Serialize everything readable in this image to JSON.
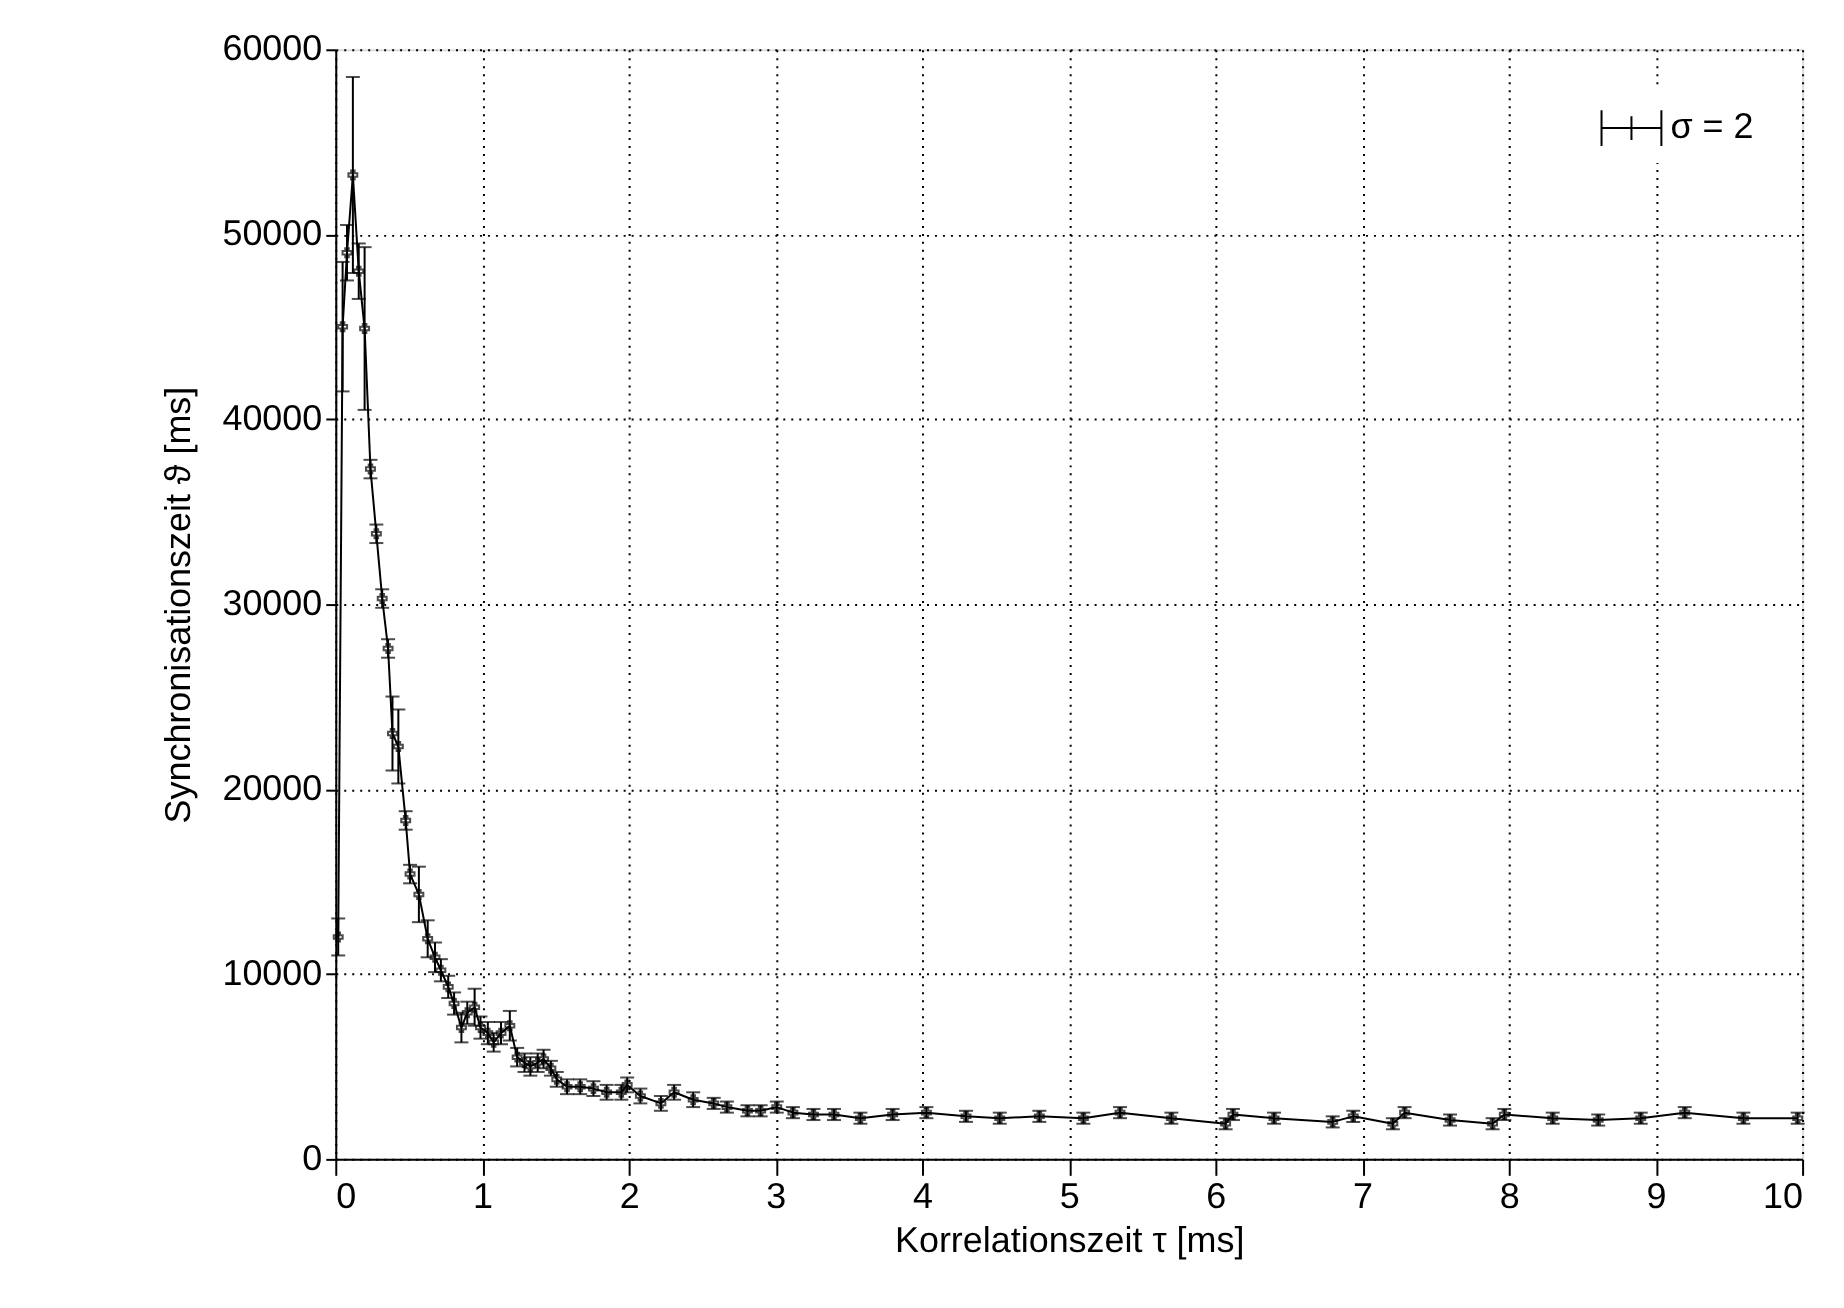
{
  "chart_data": {
    "type": "line",
    "xlabel": "Korrelationszeit τ [ms]",
    "ylabel": "Synchronisationszeit ϑ [ms]",
    "xlim": [
      0,
      10
    ],
    "ylim": [
      0,
      60000
    ],
    "xticks": [
      0,
      1,
      2,
      3,
      4,
      5,
      6,
      7,
      8,
      9,
      10
    ],
    "yticks": [
      0,
      10000,
      20000,
      30000,
      40000,
      50000,
      60000
    ],
    "grid": true,
    "legend": "top right",
    "marker": "cross",
    "line_style": "solid",
    "x": [
      0.02,
      0.05,
      0.08,
      0.12,
      0.16,
      0.2,
      0.24,
      0.28,
      0.32,
      0.36,
      0.39,
      0.43,
      0.48,
      0.51,
      0.57,
      0.63,
      0.68,
      0.72,
      0.77,
      0.81,
      0.86,
      0.9,
      0.95,
      0.99,
      1.04,
      1.08,
      1.13,
      1.19,
      1.24,
      1.29,
      1.33,
      1.38,
      1.42,
      1.47,
      1.51,
      1.58,
      1.67,
      1.76,
      1.85,
      1.95,
      1.99,
      2.08,
      2.22,
      2.31,
      2.44,
      2.58,
      2.67,
      2.81,
      2.9,
      3.01,
      3.12,
      3.26,
      3.4,
      3.58,
      3.8,
      4.03,
      4.3,
      4.53,
      4.8,
      5.1,
      5.35,
      5.7,
      6.07,
      6.12,
      6.4,
      6.8,
      6.94,
      7.21,
      7.29,
      7.6,
      7.89,
      7.97,
      8.3,
      8.61,
      8.9,
      9.2,
      9.6,
      9.97
    ],
    "series": [
      {
        "name": "σ = 2",
        "color": "#000000",
        "values": [
          12000,
          45000,
          49000,
          53200,
          48000,
          44900,
          37300,
          33800,
          30300,
          27600,
          23000,
          22300,
          18300,
          15400,
          14300,
          11900,
          10900,
          10200,
          9300,
          8400,
          7100,
          7900,
          8200,
          7100,
          6800,
          6300,
          6800,
          7200,
          5500,
          5200,
          5000,
          5200,
          5400,
          4900,
          4300,
          3900,
          3900,
          3800,
          3600,
          3600,
          4000,
          3400,
          3000,
          3600,
          3200,
          3000,
          2800,
          2600,
          2600,
          2800,
          2500,
          2400,
          2400,
          2200,
          2400,
          2500,
          2300,
          2200,
          2300,
          2200,
          2500,
          2200,
          1900,
          2400,
          2200,
          2000,
          2300,
          1900,
          2500,
          2100,
          1900,
          2400,
          2200,
          2100,
          2200,
          2500,
          2200,
          2200
        ],
        "errors": [
          1000,
          3500,
          1500,
          5300,
          1500,
          4400,
          500,
          500,
          500,
          500,
          2000,
          2000,
          500,
          500,
          1500,
          1000,
          800,
          600,
          600,
          600,
          800,
          600,
          1000,
          600,
          600,
          500,
          600,
          800,
          500,
          500,
          500,
          500,
          500,
          400,
          400,
          400,
          400,
          400,
          400,
          400,
          400,
          400,
          400,
          400,
          400,
          300,
          300,
          300,
          300,
          300,
          300,
          300,
          300,
          300,
          300,
          300,
          300,
          300,
          300,
          300,
          300,
          300,
          300,
          300,
          300,
          300,
          300,
          300,
          300,
          300,
          300,
          300,
          300,
          300,
          300,
          300,
          300,
          300
        ]
      }
    ]
  }
}
